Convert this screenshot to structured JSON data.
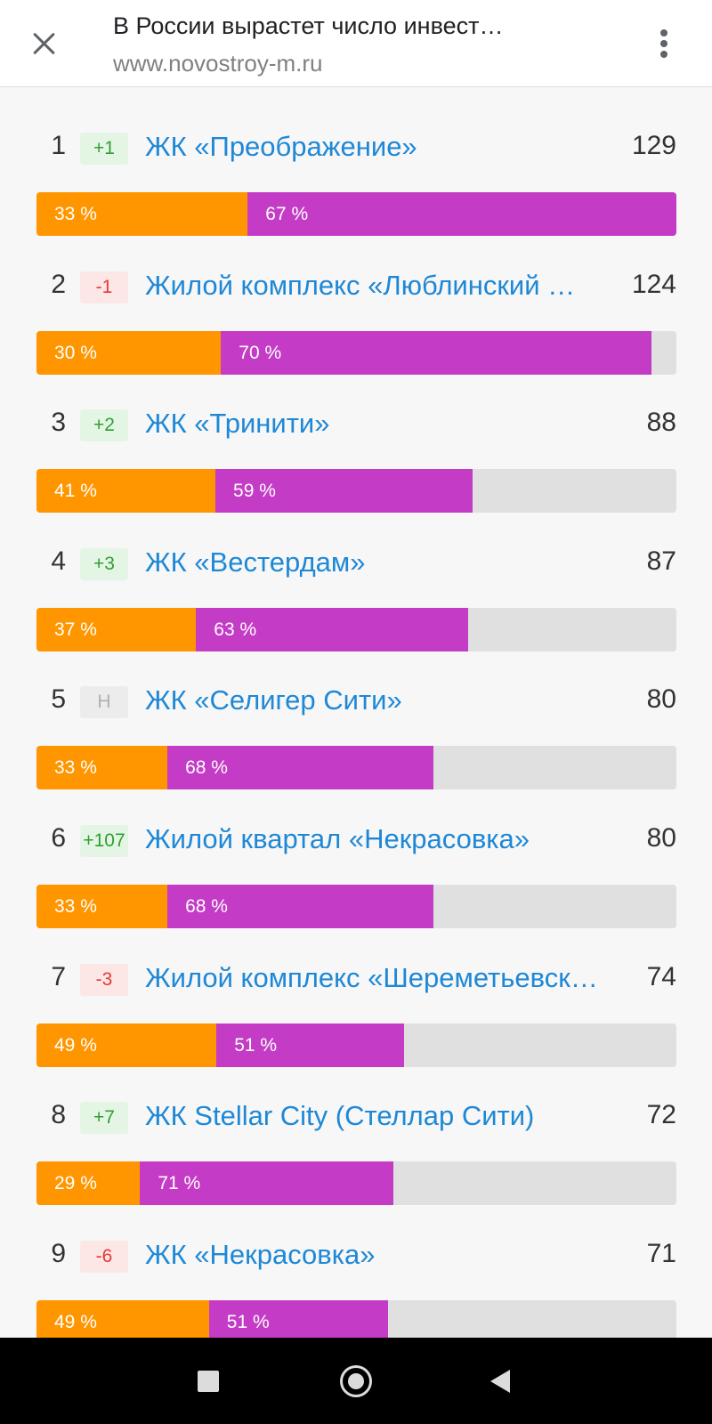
{
  "header": {
    "title": "В России вырастет число инвест…",
    "url": "www.novostroy-m.ru"
  },
  "rows": [
    {
      "rank": "1",
      "change": "+1",
      "change_type": "up",
      "name": "ЖК «Преображение»",
      "count": "129",
      "bar_fill": 1.0,
      "pct_a": "33 %",
      "pct_b": "67 %"
    },
    {
      "rank": "2",
      "change": "-1",
      "change_type": "down",
      "name": "Жилой комплекс «Люблинский …",
      "count": "124",
      "bar_fill": 0.961,
      "pct_a": "30 %",
      "pct_b": "70 %"
    },
    {
      "rank": "3",
      "change": "+2",
      "change_type": "up",
      "name": "ЖК «Тринити»",
      "count": "88",
      "bar_fill": 0.682,
      "pct_a": "41 %",
      "pct_b": "59 %"
    },
    {
      "rank": "4",
      "change": "+3",
      "change_type": "up",
      "name": "ЖК «Вестердам»",
      "count": "87",
      "bar_fill": 0.674,
      "pct_a": "37 %",
      "pct_b": "63 %"
    },
    {
      "rank": "5",
      "change": "Н",
      "change_type": "new",
      "name": "ЖК «Селигер Сити»",
      "count": "80",
      "bar_fill": 0.62,
      "pct_a": "33 %",
      "pct_b": "68 %"
    },
    {
      "rank": "6",
      "change": "+107",
      "change_type": "up",
      "name": "Жилой квартал «Некрасовка»",
      "count": "80",
      "bar_fill": 0.62,
      "pct_a": "33 %",
      "pct_b": "68 %"
    },
    {
      "rank": "7",
      "change": "-3",
      "change_type": "down",
      "name": "Жилой комплекс «Шереметьевск…",
      "count": "74",
      "bar_fill": 0.574,
      "pct_a": "49 %",
      "pct_b": "51 %"
    },
    {
      "rank": "8",
      "change": "+7",
      "change_type": "up",
      "name": "ЖК Stellar City (Стеллар Сити)",
      "count": "72",
      "bar_fill": 0.558,
      "pct_a": "29 %",
      "pct_b": "71 %"
    },
    {
      "rank": "9",
      "change": "-6",
      "change_type": "down",
      "name": "ЖК «Некрасовка»",
      "count": "71",
      "bar_fill": 0.55,
      "pct_a": "49 %",
      "pct_b": "51 %"
    }
  ],
  "colors": {
    "segment_a": "#ff9600",
    "segment_b": "#c43cc6",
    "link": "#1e88d6",
    "badge_up": "#2fa02f",
    "badge_down": "#e53935"
  },
  "icons": {
    "close": "close-icon",
    "menu": "more-vertical-icon",
    "nav": [
      "recent-apps-icon",
      "home-icon",
      "back-icon"
    ]
  }
}
